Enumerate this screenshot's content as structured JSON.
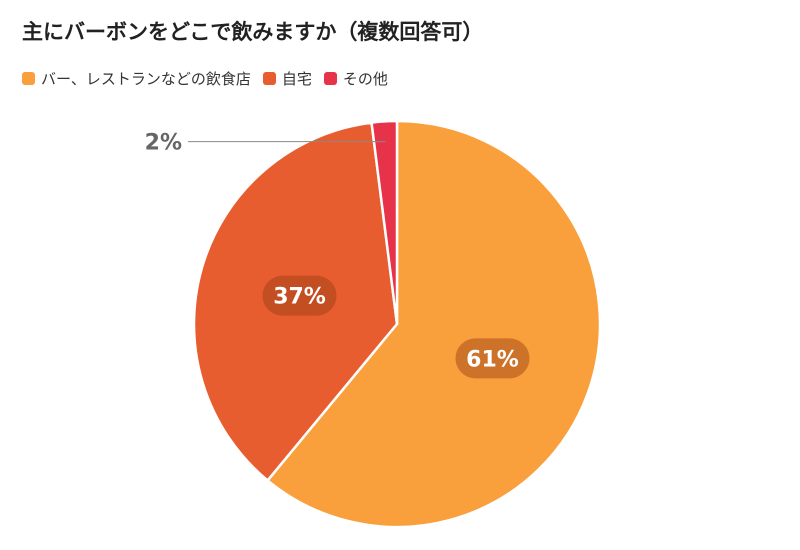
{
  "chart_data": {
    "type": "pie",
    "title": "主にバーボンをどこで飲みますか（複数回答可）",
    "slices": [
      {
        "name": "バー、レストランなどの飲食店",
        "value": 61,
        "label": "61%",
        "color": "#f99f3b"
      },
      {
        "name": "自宅",
        "value": 37,
        "label": "37%",
        "color": "#e85d2f"
      },
      {
        "name": "その他",
        "value": 2,
        "label": "2%",
        "color": "#e6334a"
      }
    ],
    "legend_position": "top-left"
  }
}
